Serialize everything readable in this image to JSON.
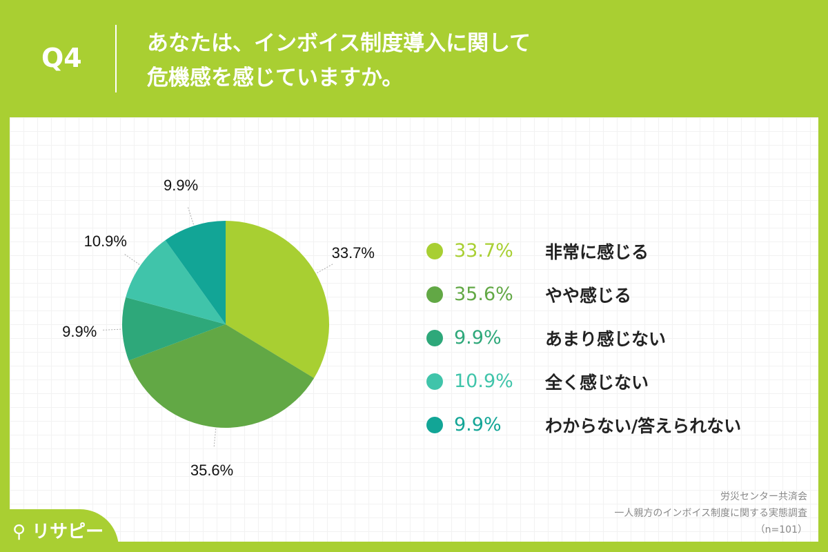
{
  "header": {
    "q": "Q4",
    "title_line1": "あなたは、インボイス制度導入に関して",
    "title_line2": "危機感を感じていますか。"
  },
  "chart_data": {
    "type": "pie",
    "title": "あなたは、インボイス制度導入に関して危機感を感じていますか。",
    "categories": [
      "非常に感じる",
      "やや感じる",
      "あまり感じない",
      "全く感じない",
      "わからない/答えられない"
    ],
    "values": [
      33.7,
      35.6,
      9.9,
      10.9,
      9.9
    ],
    "labels": [
      "33.7%",
      "35.6%",
      "9.9%",
      "10.9%",
      "9.9%"
    ],
    "colors": [
      "#a8cf32",
      "#62a845",
      "#2ea87a",
      "#40c4aa",
      "#12a596"
    ],
    "legend_placement": "right"
  },
  "source": {
    "line1": "労災センター共済会",
    "line2": "一人親方のインボイス制度に関する実態調査",
    "line3": "（n=101）"
  },
  "logo": "リサピー"
}
